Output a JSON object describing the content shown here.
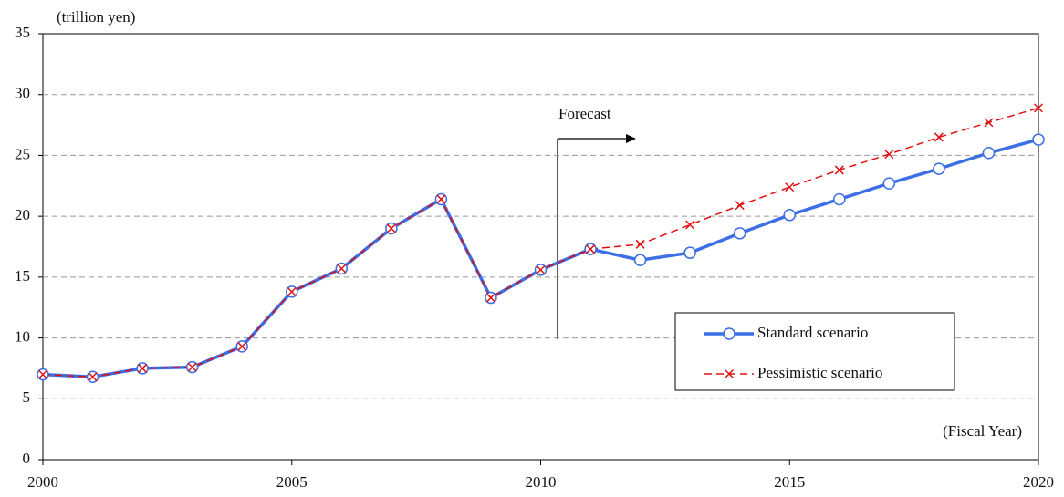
{
  "chart_data": {
    "type": "line",
    "y_label": "(trillion yen)",
    "x_label": "(Fiscal Year)",
    "annotation": "Forecast",
    "x": [
      2000,
      2001,
      2002,
      2003,
      2004,
      2005,
      2006,
      2007,
      2008,
      2009,
      2010,
      2011,
      2012,
      2013,
      2014,
      2015,
      2016,
      2017,
      2018,
      2019,
      2020
    ],
    "xlim": [
      2000,
      2020
    ],
    "xticks": [
      2000,
      2005,
      2010,
      2015,
      2020
    ],
    "ylim": [
      0,
      35
    ],
    "yticks": [
      0,
      5,
      10,
      15,
      20,
      25,
      30,
      35
    ],
    "grid": true,
    "legend": "lower right",
    "series": [
      {
        "name": "Standard scenario",
        "color": "#3c6ee6",
        "marker": "circle",
        "dash": false,
        "values": [
          7.0,
          6.8,
          7.5,
          7.6,
          9.3,
          13.8,
          15.7,
          19.0,
          21.4,
          13.3,
          15.6,
          17.3,
          16.4,
          17.0,
          18.6,
          20.1,
          21.4,
          22.7,
          23.9,
          25.2,
          26.3
        ]
      },
      {
        "name": "Pessimistic scenario",
        "color": "#e01010",
        "marker": "x",
        "dash": true,
        "values": [
          7.0,
          6.8,
          7.5,
          7.6,
          9.3,
          13.8,
          15.7,
          19.0,
          21.4,
          13.3,
          15.6,
          17.3,
          17.7,
          19.3,
          20.9,
          22.4,
          23.8,
          25.1,
          26.5,
          27.7,
          28.9
        ]
      }
    ]
  }
}
